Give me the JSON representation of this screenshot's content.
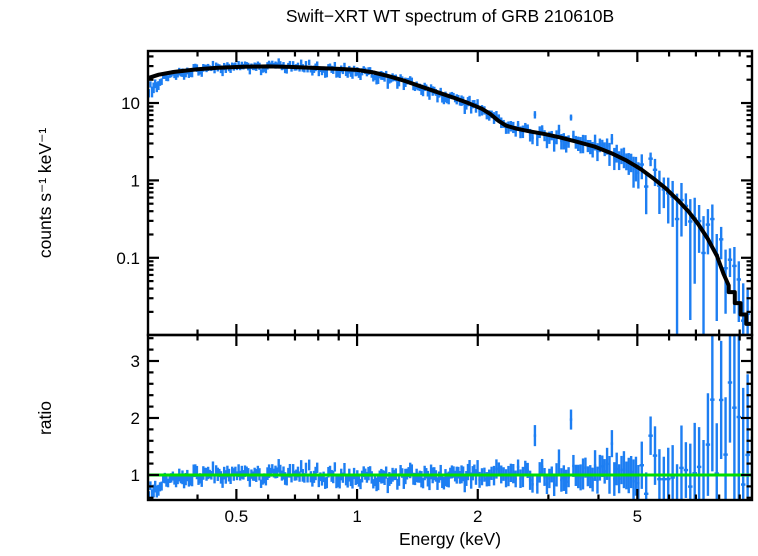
{
  "chart_data": {
    "type": "scatter",
    "title": "Swift−XRT WT spectrum of GRB 210610B",
    "xlabel": "Energy (keV)",
    "xscale": "log",
    "xlim": [
      0.301,
      9.66
    ],
    "x_major_ticks": [
      0.5,
      1,
      2,
      5
    ],
    "x_major_labels": [
      "0.5",
      "1",
      "2",
      "5"
    ],
    "x_minor_ticks": [
      0.4,
      0.6,
      0.7,
      0.8,
      0.9,
      3,
      4,
      6,
      7,
      8,
      9
    ],
    "legend": "none",
    "grid": false,
    "colors": {
      "data": "#1d7ef2",
      "model": "#000000",
      "reference_line": "#00dd00",
      "axes": "#000000",
      "background": "#ffffff"
    },
    "noise_seed": 13,
    "outlier_probability": 0.025,
    "binning": [
      {
        "to": 2.0,
        "dlog": 0.004
      },
      {
        "to": 5.0,
        "dlog": 0.006
      },
      {
        "to": 9.66,
        "dlog": 0.011
      }
    ],
    "panels": {
      "spectrum": {
        "ylabel": "counts s⁻¹ keV⁻¹",
        "yscale": "log",
        "ylim": [
          0.01005,
          47.0
        ],
        "y_major_ticks": [
          10,
          1,
          0.1
        ],
        "y_major_labels": [
          "10",
          "1",
          "0.1"
        ],
        "y_minor_ticks": [
          0.02,
          0.03,
          0.04,
          0.05,
          0.06,
          0.07,
          0.08,
          0.09,
          0.2,
          0.3,
          0.4,
          0.5,
          0.6,
          0.7,
          0.8,
          0.9,
          2,
          3,
          4,
          5,
          6,
          7,
          8,
          9,
          20,
          30,
          40
        ],
        "model_curve": [
          [
            0.301,
            21.0
          ],
          [
            0.32,
            23.2
          ],
          [
            0.35,
            25.2
          ],
          [
            0.4,
            27.3
          ],
          [
            0.45,
            28.6
          ],
          [
            0.52,
            29.5
          ],
          [
            0.6,
            29.7
          ],
          [
            0.68,
            29.3
          ],
          [
            0.78,
            28.4
          ],
          [
            0.9,
            27.6
          ],
          [
            1.0,
            26.8
          ],
          [
            1.1,
            24.8
          ],
          [
            1.2,
            22.2
          ],
          [
            1.32,
            19.2
          ],
          [
            1.45,
            16.2
          ],
          [
            1.6,
            13.6
          ],
          [
            1.75,
            11.6
          ],
          [
            1.9,
            9.9
          ],
          [
            2.05,
            8.4
          ],
          [
            2.15,
            7.2
          ],
          [
            2.25,
            5.9
          ],
          [
            2.35,
            5.1
          ],
          [
            2.5,
            4.65
          ],
          [
            2.7,
            4.3
          ],
          [
            2.95,
            3.95
          ],
          [
            3.2,
            3.6
          ],
          [
            3.5,
            3.2
          ],
          [
            3.9,
            2.75
          ],
          [
            4.3,
            2.25
          ],
          [
            4.7,
            1.8
          ],
          [
            5.1,
            1.4
          ],
          [
            5.5,
            1.05
          ],
          [
            5.9,
            0.78
          ],
          [
            6.3,
            0.56
          ],
          [
            6.7,
            0.4
          ],
          [
            7.1,
            0.27
          ],
          [
            7.5,
            0.175
          ],
          [
            7.9,
            0.105
          ],
          [
            8.2,
            0.062
          ],
          [
            8.45,
            0.044
          ],
          [
            8.45,
            0.036
          ],
          [
            8.75,
            0.036
          ],
          [
            8.75,
            0.026
          ],
          [
            9.05,
            0.026
          ],
          [
            9.05,
            0.0185
          ],
          [
            9.35,
            0.0185
          ],
          [
            9.35,
            0.014
          ],
          [
            9.66,
            0.014
          ]
        ]
      },
      "ratio": {
        "ylabel": "ratio",
        "yscale": "linear",
        "ylim": [
          0.561,
          3.456
        ],
        "y_major_ticks": [
          1,
          2,
          3
        ],
        "y_major_labels": [
          "1",
          "2",
          "3"
        ],
        "y_minor_ticks": [
          0.6,
          0.8,
          1.2,
          1.4,
          1.6,
          1.8,
          2.2,
          2.4,
          2.6,
          2.8,
          3.2,
          3.4
        ],
        "reference_line": 1.0,
        "mean_ratio_curve": [
          [
            0.301,
            0.66
          ],
          [
            0.33,
            0.87
          ],
          [
            0.37,
            0.94
          ],
          [
            0.42,
            0.99
          ],
          [
            0.5,
            1.02
          ],
          [
            0.6,
            1.03
          ],
          [
            0.7,
            1.01
          ],
          [
            0.85,
            0.97
          ],
          [
            1.0,
            0.96
          ],
          [
            1.3,
            0.955
          ],
          [
            1.7,
            0.99
          ],
          [
            2.1,
            1.02
          ],
          [
            2.6,
            1.0
          ],
          [
            3.2,
            1.0
          ],
          [
            4.0,
            1.03
          ],
          [
            5.0,
            1.04
          ],
          [
            6.0,
            1.07
          ],
          [
            7.0,
            1.1
          ],
          [
            8.0,
            1.15
          ],
          [
            9.66,
            1.22
          ]
        ],
        "scatter_sigma_curve": [
          [
            0.301,
            0.05
          ],
          [
            0.4,
            0.06
          ],
          [
            0.6,
            0.075
          ],
          [
            1.0,
            0.065
          ],
          [
            1.5,
            0.07
          ],
          [
            2.0,
            0.08
          ],
          [
            3.0,
            0.1
          ],
          [
            4.0,
            0.13
          ],
          [
            5.0,
            0.18
          ],
          [
            6.0,
            0.27
          ],
          [
            7.0,
            0.42
          ],
          [
            8.0,
            0.6
          ],
          [
            9.0,
            0.8
          ],
          [
            9.66,
            0.9
          ]
        ],
        "error_bar_curve": [
          [
            0.301,
            0.1
          ],
          [
            0.5,
            0.095
          ],
          [
            1.0,
            0.1
          ],
          [
            2.0,
            0.13
          ],
          [
            3.0,
            0.17
          ],
          [
            4.0,
            0.24
          ],
          [
            5.0,
            0.33
          ],
          [
            6.0,
            0.48
          ],
          [
            7.0,
            0.75
          ],
          [
            8.0,
            1.15
          ],
          [
            9.66,
            1.6
          ]
        ]
      }
    }
  }
}
